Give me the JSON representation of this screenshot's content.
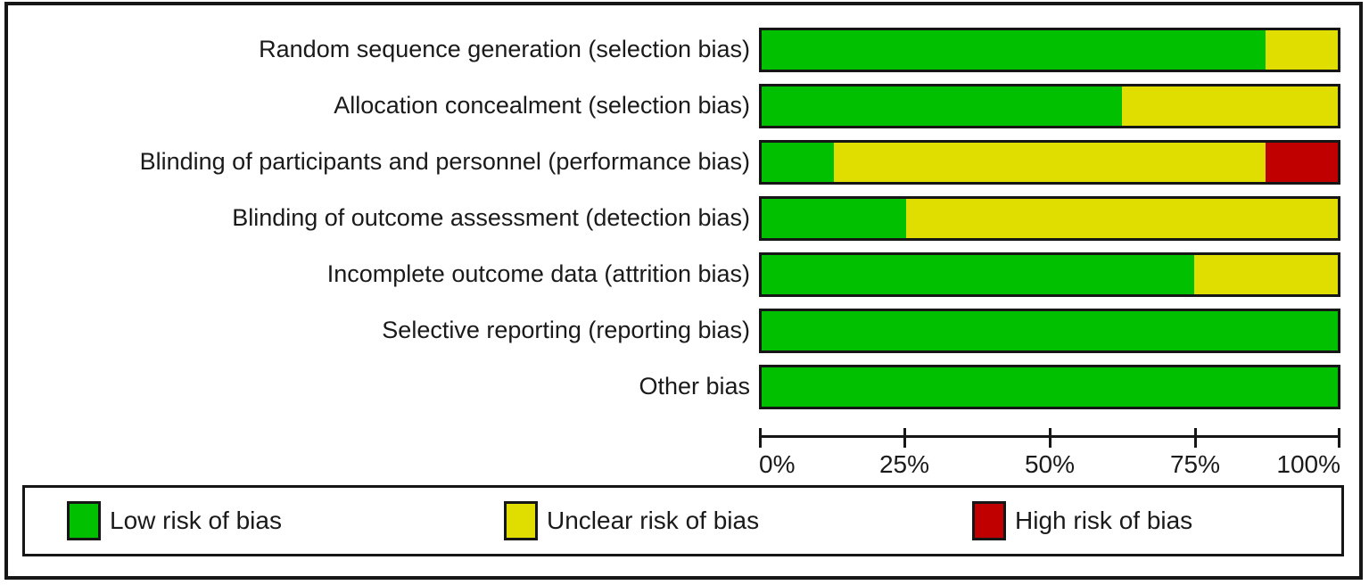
{
  "chart_data": {
    "type": "bar",
    "variant": "horizontal-stacked-percent",
    "title": "",
    "xlabel": "",
    "ylabel": "",
    "grid": false,
    "legend_position": "bottom",
    "x_range": [
      0,
      100
    ],
    "x_ticks": [
      "0%",
      "25%",
      "50%",
      "75%",
      "100%"
    ],
    "x_tick_values": [
      0,
      25,
      50,
      75,
      100
    ],
    "categories": [
      "Random sequence generation (selection bias)",
      "Allocation concealment (selection bias)",
      "Blinding of participants and personnel (performance bias)",
      "Blinding of outcome assessment (detection bias)",
      "Incomplete outcome data (attrition bias)",
      "Selective reporting (reporting bias)",
      "Other bias"
    ],
    "series": [
      {
        "name": "Low risk of bias",
        "color": "#00C000",
        "values": [
          87.5,
          62.5,
          12.5,
          25,
          75,
          100,
          100
        ]
      },
      {
        "name": "Unclear risk of bias",
        "color": "#E0DE00",
        "values": [
          12.5,
          37.5,
          75,
          75,
          25,
          0,
          0
        ]
      },
      {
        "name": "High risk of bias",
        "color": "#C00000",
        "values": [
          0,
          0,
          12.5,
          0,
          0,
          0,
          0
        ]
      }
    ],
    "legend": [
      {
        "label": "Low risk of bias",
        "color": "#00C000"
      },
      {
        "label": "Unclear risk of bias",
        "color": "#E0DE00"
      },
      {
        "label": "High risk of bias",
        "color": "#C00000"
      }
    ],
    "colors": {
      "border": "#161616",
      "background": "#ffffff",
      "text": "#1a1a1a"
    }
  }
}
